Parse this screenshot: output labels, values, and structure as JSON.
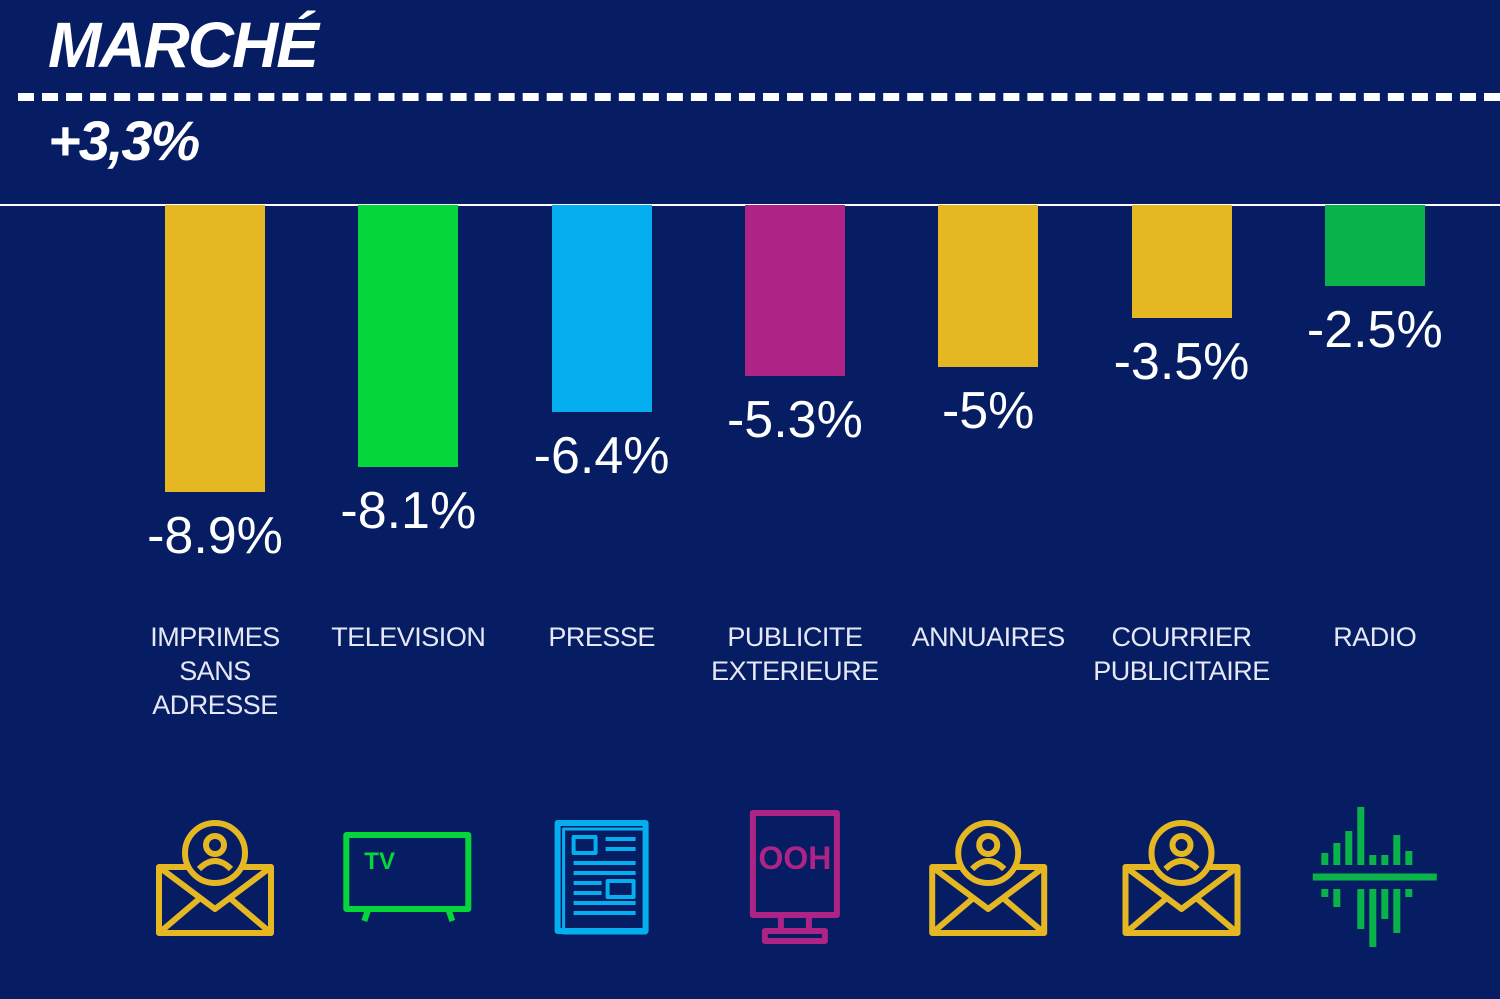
{
  "chart_data": {
    "type": "bar",
    "title": "MARCHÉ",
    "subtitle": "+3,3%",
    "categories": [
      "IMPRIMES SANS ADRESSE",
      "TELEVISION",
      "PRESSE",
      "PUBLICITE EXTERIEURE",
      "ANNUAIRES",
      "COURRIER PUBLICITAIRE",
      "RADIO"
    ],
    "values": [
      -8.9,
      -8.1,
      -6.4,
      -5.3,
      -5,
      -3.5,
      -2.5
    ],
    "value_labels": [
      "-8.9%",
      "-8.1%",
      "-6.4%",
      "-5.3%",
      "-5%",
      "-3.5%",
      "-2.5%"
    ],
    "colors": [
      "#e5b823",
      "#05d63c",
      "#05aeef",
      "#ad2486",
      "#e5b823",
      "#e5b823",
      "#0ab24a"
    ],
    "icon_labels": [
      null,
      "TV",
      null,
      "OOH",
      null,
      null,
      null
    ],
    "ylim": [
      -10,
      0
    ]
  }
}
